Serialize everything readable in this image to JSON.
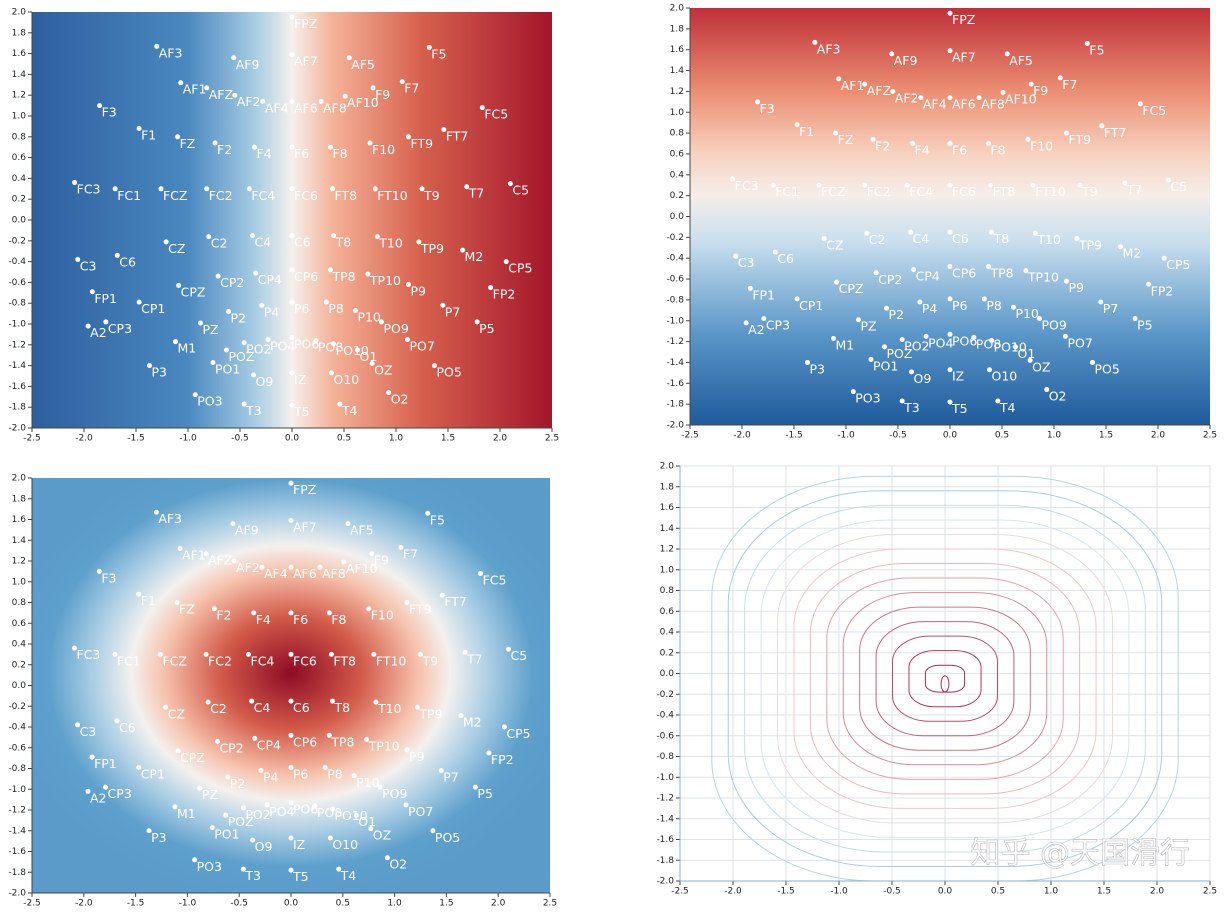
{
  "chart_data": [
    {
      "type": "scatter",
      "color": "#ffffff",
      "labels": [
        "FPZ",
        "AF3",
        "AF9",
        "AF7",
        "AF5",
        "F5",
        "AF1",
        "AFZ",
        "AF2",
        "AF4",
        "AF6",
        "AF8",
        "AF10",
        "F9",
        "F7",
        "F3",
        "FC5",
        "F1",
        "FZ",
        "F2",
        "F4",
        "F6",
        "F8",
        "F10",
        "FT9",
        "FT7",
        "FC3",
        "FC1",
        "FCZ",
        "FC2",
        "FC4",
        "FC6",
        "FT8",
        "FT10",
        "T9",
        "T7",
        "C5",
        "CZ",
        "C2",
        "C4",
        "C6",
        "T8",
        "T10",
        "TP9",
        "M2",
        "C6",
        "C3",
        "CP5",
        "CP2",
        "CP4",
        "CP6",
        "TP8",
        "TP10",
        "P9",
        "FP2",
        "FP1",
        "CPZ",
        "CP1",
        "P2",
        "P4",
        "P6",
        "P8",
        "P10",
        "P7",
        "PZ",
        "PO9",
        "P5",
        "A2",
        "CP3",
        "M1",
        "PO7",
        "POZ",
        "PO2",
        "PO4",
        "PO6",
        "PO8",
        "PO10",
        "O1",
        "OZ",
        "PO1",
        "P3",
        "PO5",
        "O9",
        "IZ",
        "O10",
        "PO3",
        "O2",
        "T3",
        "T5",
        "T4"
      ],
      "x": [
        0,
        -1.3,
        -0.56,
        0,
        0.55,
        1.32,
        -1.07,
        -0.82,
        -0.55,
        -0.28,
        0,
        0.28,
        0.51,
        0.78,
        1.06,
        -1.85,
        1.83,
        -1.47,
        -1.1,
        -0.74,
        -0.36,
        0,
        0.37,
        0.75,
        1.12,
        1.46,
        -2.09,
        -1.7,
        -1.26,
        -0.82,
        -0.41,
        0,
        0.39,
        0.8,
        1.25,
        1.68,
        2.1,
        -1.21,
        -0.8,
        -0.38,
        0,
        0.4,
        0.82,
        1.22,
        1.64,
        -1.68,
        -2.06,
        2.06,
        -0.71,
        -0.35,
        0,
        0.37,
        0.73,
        1.12,
        1.91,
        -1.92,
        -1.09,
        -1.47,
        -0.61,
        -0.29,
        0,
        0.33,
        0.61,
        1.45,
        -0.88,
        0.86,
        1.78,
        -1.96,
        -1.79,
        -1.12,
        1.11,
        -0.63,
        -0.46,
        -0.23,
        0,
        0.23,
        0.4,
        0.63,
        0.77,
        -0.76,
        -1.37,
        1.37,
        -0.37,
        0,
        0.38,
        -0.93,
        0.93,
        -0.46,
        0,
        0.46
      ],
      "y": [
        1.95,
        1.67,
        1.56,
        1.59,
        1.56,
        1.66,
        1.32,
        1.27,
        1.2,
        1.14,
        1.14,
        1.14,
        1.19,
        1.27,
        1.33,
        1.1,
        1.08,
        0.88,
        0.8,
        0.74,
        0.7,
        0.7,
        0.7,
        0.74,
        0.8,
        0.87,
        0.36,
        0.3,
        0.3,
        0.3,
        0.3,
        0.3,
        0.3,
        0.3,
        0.3,
        0.32,
        0.35,
        -0.21,
        -0.16,
        -0.15,
        -0.15,
        -0.15,
        -0.16,
        -0.21,
        -0.29,
        -0.34,
        -0.38,
        -0.4,
        -0.54,
        -0.51,
        -0.48,
        -0.48,
        -0.52,
        -0.62,
        -0.65,
        -0.69,
        -0.63,
        -0.79,
        -0.88,
        -0.82,
        -0.79,
        -0.79,
        -0.87,
        -0.82,
        -0.99,
        -0.98,
        -0.98,
        -1.02,
        -0.98,
        -1.17,
        -1.15,
        -1.25,
        -1.18,
        -1.15,
        -1.13,
        -1.16,
        -1.19,
        -1.25,
        -1.38,
        -1.37,
        -1.4,
        -1.4,
        -1.49,
        -1.47,
        -1.47,
        -1.68,
        -1.66,
        -1.77,
        -1.78,
        -1.77
      ],
      "xlim": [
        -2.5,
        2.5
      ],
      "ylim": [
        -2,
        2
      ],
      "xticks": [
        -2.5,
        {
          "value": -2,
          "label": "-2.0"
        },
        -1.5,
        {
          "value": -1,
          "label": "-1.0"
        },
        -0.5,
        {
          "value": 0,
          "label": "0.0"
        },
        0.5,
        {
          "value": 1,
          "label": "1.0"
        },
        1.5,
        {
          "value": 2,
          "label": "2.0"
        },
        2.5
      ],
      "yticks": [
        {
          "value": -2,
          "label": "-2.0"
        },
        -1.8,
        -1.6,
        -1.4,
        -1.2,
        {
          "value": -1,
          "label": "-1.0"
        },
        -0.8,
        -0.6,
        -0.4,
        -0.2,
        {
          "value": 0,
          "label": "0.0"
        },
        0.2,
        0.4,
        0.6,
        0.8,
        {
          "value": 1,
          "label": "1.0"
        },
        1.2,
        1.4,
        1.6,
        1.8,
        {
          "value": 2,
          "label": "2.0"
        }
      ]
    },
    {
      "type": "scatter",
      "color": "#ffffff",
      "labels": [
        "FPZ",
        "AF3",
        "AF9",
        "AF7",
        "AF5",
        "F5",
        "AF1",
        "AFZ",
        "AF2",
        "AF4",
        "AF6",
        "AF8",
        "AF10",
        "F9",
        "F7",
        "F3",
        "FC5",
        "F1",
        "FZ",
        "F2",
        "F4",
        "F6",
        "F8",
        "F10",
        "FT9",
        "FT7",
        "FC3",
        "FC1",
        "FCZ",
        "FC2",
        "FC4",
        "FC6",
        "FT8",
        "FT10",
        "T9",
        "T7",
        "C5",
        "CZ",
        "C2",
        "C4",
        "C6",
        "T8",
        "T10",
        "TP9",
        "M2",
        "C6",
        "C3",
        "CP5",
        "CP2",
        "CP4",
        "CP6",
        "TP8",
        "TP10",
        "P9",
        "FP2",
        "FP1",
        "CPZ",
        "CP1",
        "P2",
        "P4",
        "P6",
        "P8",
        "P10",
        "P7",
        "PZ",
        "PO9",
        "P5",
        "A2",
        "CP3",
        "M1",
        "PO7",
        "POZ",
        "PO2",
        "PO4",
        "PO6",
        "PO8",
        "PO10",
        "O1",
        "OZ",
        "PO1",
        "P3",
        "PO5",
        "O9",
        "IZ",
        "O10",
        "PO3",
        "O2",
        "T3",
        "T5",
        "T4"
      ],
      "x": [
        0,
        -1.3,
        -0.56,
        0,
        0.55,
        1.32,
        -1.07,
        -0.82,
        -0.55,
        -0.28,
        0,
        0.28,
        0.51,
        0.78,
        1.06,
        -1.85,
        1.83,
        -1.47,
        -1.1,
        -0.74,
        -0.36,
        0,
        0.37,
        0.75,
        1.12,
        1.46,
        -2.09,
        -1.7,
        -1.26,
        -0.82,
        -0.41,
        0,
        0.39,
        0.8,
        1.25,
        1.68,
        2.1,
        -1.21,
        -0.8,
        -0.38,
        0,
        0.4,
        0.82,
        1.22,
        1.64,
        -1.68,
        -2.06,
        2.06,
        -0.71,
        -0.35,
        0,
        0.37,
        0.73,
        1.12,
        1.91,
        -1.92,
        -1.09,
        -1.47,
        -0.61,
        -0.29,
        0,
        0.33,
        0.61,
        1.45,
        -0.88,
        0.86,
        1.78,
        -1.96,
        -1.79,
        -1.12,
        1.11,
        -0.63,
        -0.46,
        -0.23,
        0,
        0.23,
        0.4,
        0.63,
        0.77,
        -0.76,
        -1.37,
        1.37,
        -0.37,
        0,
        0.38,
        -0.93,
        0.93,
        -0.46,
        0,
        0.46
      ],
      "y": [
        1.95,
        1.67,
        1.56,
        1.59,
        1.56,
        1.66,
        1.32,
        1.27,
        1.2,
        1.14,
        1.14,
        1.14,
        1.19,
        1.27,
        1.33,
        1.1,
        1.08,
        0.88,
        0.8,
        0.74,
        0.7,
        0.7,
        0.7,
        0.74,
        0.8,
        0.87,
        0.36,
        0.3,
        0.3,
        0.3,
        0.3,
        0.3,
        0.3,
        0.3,
        0.3,
        0.32,
        0.35,
        -0.21,
        -0.16,
        -0.15,
        -0.15,
        -0.15,
        -0.16,
        -0.21,
        -0.29,
        -0.34,
        -0.38,
        -0.4,
        -0.54,
        -0.51,
        -0.48,
        -0.48,
        -0.52,
        -0.62,
        -0.65,
        -0.69,
        -0.63,
        -0.79,
        -0.88,
        -0.82,
        -0.79,
        -0.79,
        -0.87,
        -0.82,
        -0.99,
        -0.98,
        -0.98,
        -1.02,
        -0.98,
        -1.17,
        -1.15,
        -1.25,
        -1.18,
        -1.15,
        -1.13,
        -1.16,
        -1.19,
        -1.25,
        -1.38,
        -1.37,
        -1.4,
        -1.4,
        -1.49,
        -1.47,
        -1.47,
        -1.68,
        -1.66,
        -1.77,
        -1.78,
        -1.77
      ],
      "xlim": [
        -2.5,
        2.5
      ],
      "ylim": [
        -2,
        2
      ],
      "xticks": [
        -2.5,
        {
          "value": -2,
          "label": "-2.0"
        },
        -1.5,
        {
          "value": -1,
          "label": "-1.0"
        },
        -0.5,
        {
          "value": 0,
          "label": "0.0"
        },
        0.5,
        {
          "value": 1,
          "label": "1.0"
        },
        1.5,
        {
          "value": 2,
          "label": "2.0"
        },
        2.5
      ],
      "yticks": [
        {
          "value": -2,
          "label": "-2.0"
        },
        -1.8,
        -1.6,
        -1.4,
        -1.2,
        {
          "value": -1,
          "label": "-1.0"
        },
        -0.8,
        -0.6,
        -0.4,
        -0.2,
        {
          "value": 0,
          "label": "0.0"
        },
        0.2,
        0.4,
        0.6,
        0.8,
        {
          "value": 1,
          "label": "1.0"
        },
        1.2,
        1.4,
        1.6,
        1.8,
        {
          "value": 2,
          "label": "2.0"
        }
      ]
    },
    {
      "type": "scatter",
      "color": "#ffffff",
      "labels": [
        "FPZ",
        "AF3",
        "AF9",
        "AF7",
        "AF5",
        "F5",
        "AF1",
        "AFZ",
        "AF2",
        "AF4",
        "AF6",
        "AF8",
        "AF10",
        "F9",
        "F7",
        "F3",
        "FC5",
        "F1",
        "FZ",
        "F2",
        "F4",
        "F6",
        "F8",
        "F10",
        "FT9",
        "FT7",
        "FC3",
        "FC1",
        "FCZ",
        "FC2",
        "FC4",
        "FC6",
        "FT8",
        "FT10",
        "T9",
        "T7",
        "C5",
        "CZ",
        "C2",
        "C4",
        "C6",
        "T8",
        "T10",
        "TP9",
        "M2",
        "C6",
        "C3",
        "CP5",
        "CP2",
        "CP4",
        "CP6",
        "TP8",
        "TP10",
        "P9",
        "FP2",
        "FP1",
        "CPZ",
        "CP1",
        "P2",
        "P4",
        "P6",
        "P8",
        "P10",
        "P7",
        "PZ",
        "PO9",
        "P5",
        "A2",
        "CP3",
        "M1",
        "PO7",
        "POZ",
        "PO2",
        "PO4",
        "PO6",
        "PO8",
        "PO10",
        "O1",
        "OZ",
        "PO1",
        "P3",
        "PO5",
        "O9",
        "IZ",
        "O10",
        "PO3",
        "O2",
        "T3",
        "T5",
        "T4"
      ],
      "x": [
        0,
        -1.3,
        -0.56,
        0,
        0.55,
        1.32,
        -1.07,
        -0.82,
        -0.55,
        -0.28,
        0,
        0.28,
        0.51,
        0.78,
        1.06,
        -1.85,
        1.83,
        -1.47,
        -1.1,
        -0.74,
        -0.36,
        0,
        0.37,
        0.75,
        1.12,
        1.46,
        -2.09,
        -1.7,
        -1.26,
        -0.82,
        -0.41,
        0,
        0.39,
        0.8,
        1.25,
        1.68,
        2.1,
        -1.21,
        -0.8,
        -0.38,
        0,
        0.4,
        0.82,
        1.22,
        1.64,
        -1.68,
        -2.06,
        2.06,
        -0.71,
        -0.35,
        0,
        0.37,
        0.73,
        1.12,
        1.91,
        -1.92,
        -1.09,
        -1.47,
        -0.61,
        -0.29,
        0,
        0.33,
        0.61,
        1.45,
        -0.88,
        0.86,
        1.78,
        -1.96,
        -1.79,
        -1.12,
        1.11,
        -0.63,
        -0.46,
        -0.23,
        0,
        0.23,
        0.4,
        0.63,
        0.77,
        -0.76,
        -1.37,
        1.37,
        -0.37,
        0,
        0.38,
        -0.93,
        0.93,
        -0.46,
        0,
        0.46
      ],
      "y": [
        1.95,
        1.67,
        1.56,
        1.59,
        1.56,
        1.66,
        1.32,
        1.27,
        1.2,
        1.14,
        1.14,
        1.14,
        1.19,
        1.27,
        1.33,
        1.1,
        1.08,
        0.88,
        0.8,
        0.74,
        0.7,
        0.7,
        0.7,
        0.74,
        0.8,
        0.87,
        0.36,
        0.3,
        0.3,
        0.3,
        0.3,
        0.3,
        0.3,
        0.3,
        0.3,
        0.32,
        0.35,
        -0.21,
        -0.16,
        -0.15,
        -0.15,
        -0.15,
        -0.16,
        -0.21,
        -0.29,
        -0.34,
        -0.38,
        -0.4,
        -0.54,
        -0.51,
        -0.48,
        -0.48,
        -0.52,
        -0.62,
        -0.65,
        -0.69,
        -0.63,
        -0.79,
        -0.88,
        -0.82,
        -0.79,
        -0.79,
        -0.87,
        -0.82,
        -0.99,
        -0.98,
        -0.98,
        -1.02,
        -0.98,
        -1.17,
        -1.15,
        -1.25,
        -1.18,
        -1.15,
        -1.13,
        -1.16,
        -1.19,
        -1.25,
        -1.38,
        -1.37,
        -1.4,
        -1.4,
        -1.49,
        -1.47,
        -1.47,
        -1.68,
        -1.66,
        -1.77,
        -1.78,
        -1.77
      ],
      "xlim": [
        -2.5,
        2.5
      ],
      "ylim": [
        -2,
        2
      ],
      "xticks": [
        -2.5,
        {
          "value": -2,
          "label": "-2.0"
        },
        -1.5,
        {
          "value": -1,
          "label": "-1.0"
        },
        -0.5,
        {
          "value": 0,
          "label": "0.0"
        },
        0.5,
        {
          "value": 1,
          "label": "1.0"
        },
        1.5,
        {
          "value": 2,
          "label": "2.0"
        },
        2.5
      ],
      "yticks": [
        {
          "value": -2,
          "label": "-2.0"
        },
        -1.8,
        -1.6,
        -1.4,
        -1.2,
        {
          "value": -1,
          "label": "-1.0"
        },
        -0.8,
        -0.6,
        -0.4,
        -0.2,
        {
          "value": 0,
          "label": "0.0"
        },
        0.2,
        0.4,
        0.6,
        0.8,
        {
          "value": 1,
          "label": "1.0"
        },
        1.2,
        1.4,
        1.6,
        1.8,
        {
          "value": 2,
          "label": "2.0"
        }
      ]
    },
    {
      "type": "contour",
      "grid": true,
      "annotation": "知乎 @天国滑行",
      "xlim": [
        -2.5,
        2.5
      ],
      "ylim": [
        -2,
        2
      ],
      "xticks": [
        -2.5,
        {
          "value": -2,
          "label": "-2.0"
        },
        -1.5,
        {
          "value": -1,
          "label": "-1.0"
        },
        -0.5,
        {
          "value": 0,
          "label": "0.0"
        },
        0.5,
        {
          "value": 1,
          "label": "1.0"
        },
        1.5,
        {
          "value": 2,
          "label": "2.0"
        },
        2.5
      ],
      "yticks": [
        {
          "value": -2,
          "label": "-2.0"
        },
        -1.8,
        -1.6,
        -1.4,
        -1.2,
        {
          "value": -1,
          "label": "-1.0"
        },
        -0.8,
        -0.6,
        -0.4,
        -0.2,
        {
          "value": 0,
          "label": "0.0"
        },
        0.2,
        0.4,
        0.6,
        0.8,
        {
          "value": 1,
          "label": "1.0"
        },
        1.2,
        1.4,
        1.6,
        1.8,
        {
          "value": 2,
          "label": "2.0"
        }
      ]
    }
  ]
}
